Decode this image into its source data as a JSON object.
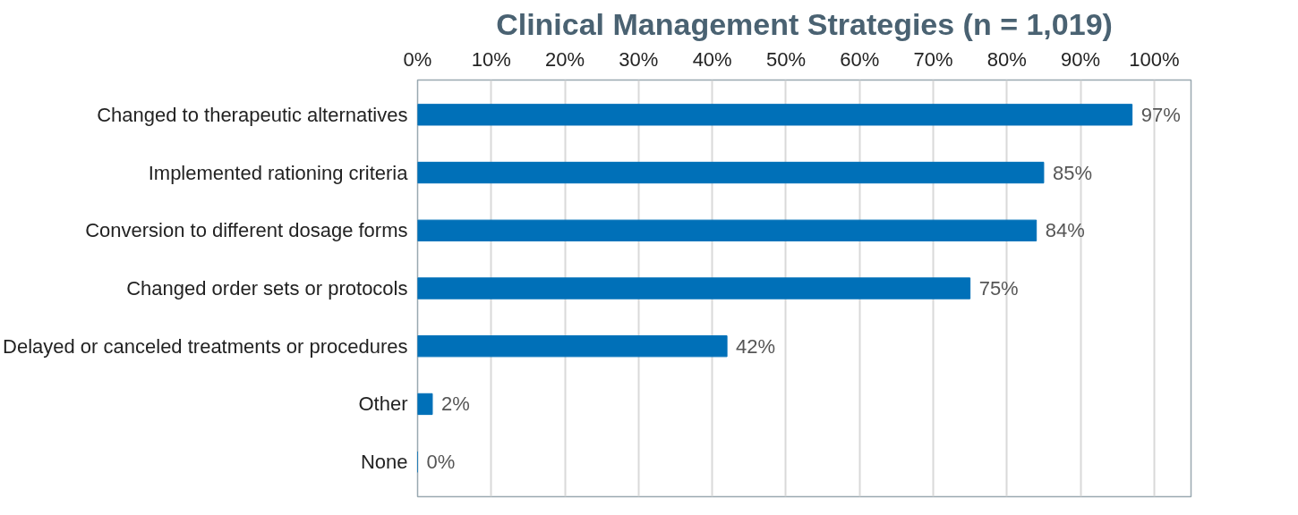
{
  "chart_data": {
    "type": "bar",
    "orientation": "horizontal",
    "title": "Clinical Management Strategies (n = 1,019)",
    "categories": [
      "Changed to therapeutic alternatives",
      "Implemented rationing criteria",
      "Conversion to different dosage forms",
      "Changed order sets or protocols",
      "Delayed or canceled treatments or procedures",
      "Other",
      "None"
    ],
    "values": [
      97,
      85,
      84,
      75,
      42,
      2,
      0
    ],
    "value_labels": [
      "97%",
      "85%",
      "84%",
      "75%",
      "42%",
      "2%",
      "0%"
    ],
    "color": "#0070b8",
    "xlim": [
      0,
      105
    ],
    "xticks": [
      {
        "value": 0,
        "label": "0%"
      },
      {
        "value": 10,
        "label": "10%"
      },
      {
        "value": 20,
        "label": "20%"
      },
      {
        "value": 30,
        "label": "30%"
      },
      {
        "value": 40,
        "label": "40%"
      },
      {
        "value": 50,
        "label": "50%"
      },
      {
        "value": 60,
        "label": "60%"
      },
      {
        "value": 70,
        "label": "70%"
      },
      {
        "value": 80,
        "label": "80%"
      },
      {
        "value": 90,
        "label": "90%"
      },
      {
        "value": 100,
        "label": "100%"
      }
    ],
    "grid": "x"
  }
}
